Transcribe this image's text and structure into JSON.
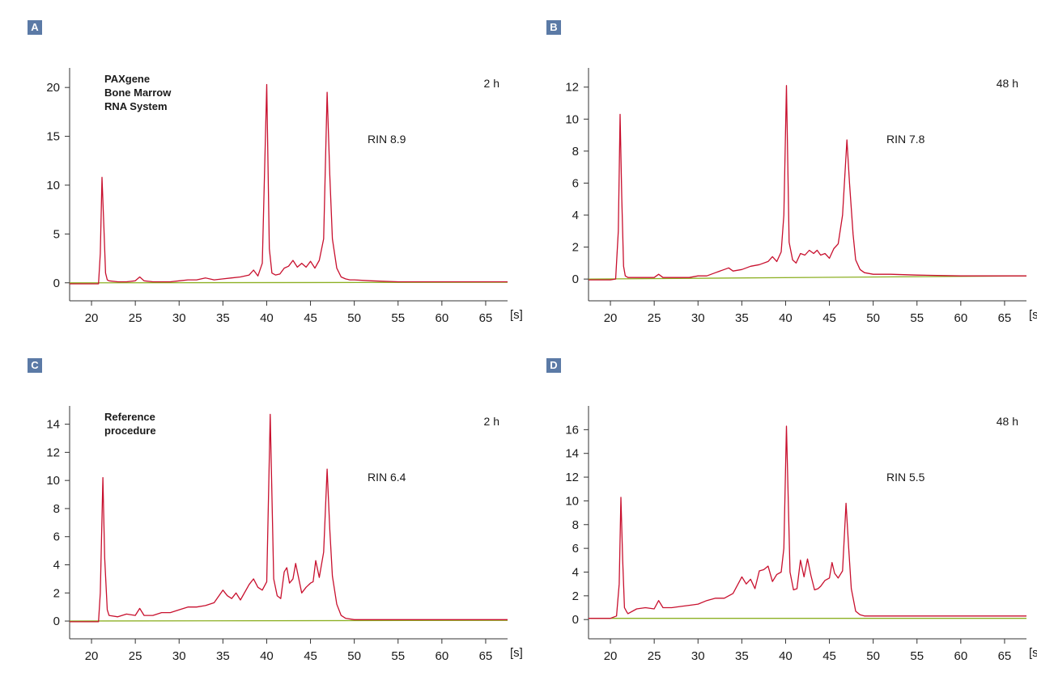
{
  "colors": {
    "trace": "#c8102e",
    "baseline": "#8db024",
    "axis": "#333333",
    "label_bg": "#5b7aa6"
  },
  "chart_data": [
    {
      "type": "line",
      "panel_label": "A",
      "time_label": "2 h",
      "rin_label": "RIN 8.9",
      "system_lines": [
        "PAXgene",
        "Bone Marrow",
        "RNA System"
      ],
      "xlabel": "[s]",
      "xlim": [
        17.5,
        67.5
      ],
      "ylim": [
        -0.6,
        22
      ],
      "xticks": [
        20,
        25,
        30,
        35,
        40,
        45,
        50,
        55,
        60,
        65
      ],
      "yticks": [
        0,
        5,
        10,
        15,
        20
      ],
      "series": [
        {
          "x": [
            17.5,
            18,
            19,
            20,
            20.8,
            21,
            21.2,
            21.4,
            21.6,
            21.8,
            22,
            23,
            24,
            25,
            25.5,
            26,
            27,
            28,
            29,
            30,
            31,
            32,
            33,
            34,
            35,
            36,
            37,
            38,
            38.5,
            39,
            39.5,
            40,
            40.3,
            40.6,
            41,
            41.5,
            42,
            42.5,
            43,
            43.5,
            44,
            44.5,
            45,
            45.5,
            46,
            46.5,
            46.9,
            47.2,
            47.5,
            48,
            48.5,
            49,
            49.5,
            50,
            52,
            55,
            60,
            65,
            67.5
          ],
          "y": [
            -0.1,
            -0.1,
            -0.1,
            -0.1,
            -0.1,
            3,
            10.8,
            6,
            1,
            0.3,
            0.2,
            0.1,
            0.1,
            0.2,
            0.6,
            0.2,
            0.1,
            0.1,
            0.1,
            0.2,
            0.3,
            0.3,
            0.5,
            0.3,
            0.4,
            0.5,
            0.6,
            0.8,
            1.3,
            0.7,
            2,
            20.3,
            3.5,
            1,
            0.8,
            0.9,
            1.5,
            1.7,
            2.3,
            1.6,
            2,
            1.6,
            2.2,
            1.5,
            2.3,
            4.5,
            19.5,
            11,
            4.5,
            1.5,
            0.6,
            0.4,
            0.3,
            0.3,
            0.2,
            0.1,
            0.1,
            0.1,
            0.1
          ]
        },
        {
          "x": [
            17.5,
            67.5
          ],
          "y": [
            0,
            0.05
          ]
        }
      ]
    },
    {
      "type": "line",
      "panel_label": "B",
      "time_label": "48 h",
      "rin_label": "RIN 7.8",
      "xlabel": "[s]",
      "xlim": [
        17.5,
        67.5
      ],
      "ylim": [
        -0.6,
        13.2
      ],
      "xticks": [
        20,
        25,
        30,
        35,
        40,
        45,
        50,
        55,
        60,
        65
      ],
      "yticks": [
        0,
        2,
        4,
        6,
        8,
        10,
        12
      ],
      "series": [
        {
          "x": [
            17.5,
            18,
            19,
            20,
            20.6,
            20.9,
            21.1,
            21.3,
            21.5,
            21.7,
            22,
            23,
            24,
            25,
            25.5,
            26,
            27,
            28,
            29,
            30,
            31,
            32,
            33,
            33.5,
            34,
            35,
            36,
            37,
            38,
            38.5,
            39,
            39.5,
            39.8,
            40.1,
            40.4,
            40.8,
            41.2,
            41.7,
            42.2,
            42.7,
            43.2,
            43.6,
            44,
            44.5,
            45,
            45.5,
            46,
            46.5,
            47,
            47.3,
            47.7,
            48,
            48.5,
            49,
            50,
            52,
            55,
            60,
            65,
            67.5
          ],
          "y": [
            -0.05,
            -0.05,
            -0.05,
            -0.05,
            0,
            3,
            10.3,
            5,
            0.8,
            0.2,
            0.1,
            0.1,
            0.1,
            0.1,
            0.3,
            0.1,
            0.1,
            0.1,
            0.1,
            0.2,
            0.2,
            0.4,
            0.6,
            0.7,
            0.5,
            0.6,
            0.8,
            0.9,
            1.1,
            1.4,
            1.1,
            1.7,
            4,
            12.1,
            2.3,
            1.2,
            1,
            1.6,
            1.5,
            1.8,
            1.6,
            1.8,
            1.5,
            1.6,
            1.3,
            1.9,
            2.2,
            4,
            8.7,
            6,
            2.8,
            1.2,
            0.6,
            0.4,
            0.3,
            0.3,
            0.25,
            0.2,
            0.2,
            0.2
          ]
        },
        {
          "x": [
            17.5,
            67.5
          ],
          "y": [
            0,
            0.2
          ]
        }
      ]
    },
    {
      "type": "line",
      "panel_label": "C",
      "time_label": "2 h",
      "rin_label": "RIN 6.4",
      "system_lines": [
        "Reference",
        "procedure"
      ],
      "xlabel": "[s]",
      "xlim": [
        17.5,
        67.5
      ],
      "ylim": [
        -0.4,
        15.3
      ],
      "xticks": [
        20,
        25,
        30,
        35,
        40,
        45,
        50,
        55,
        60,
        65
      ],
      "yticks": [
        0,
        2,
        4,
        6,
        8,
        10,
        12,
        14
      ],
      "series": [
        {
          "x": [
            17.5,
            18,
            19,
            20,
            20.8,
            21,
            21.3,
            21.5,
            21.8,
            22,
            23,
            24,
            25,
            25.5,
            26,
            27,
            28,
            29,
            30,
            31,
            32,
            33,
            34,
            35,
            35.5,
            36,
            36.5,
            37,
            38,
            38.5,
            39,
            39.5,
            40,
            40.4,
            40.8,
            41.2,
            41.6,
            42,
            42.3,
            42.6,
            43,
            43.3,
            43.6,
            44,
            44.5,
            45,
            45.3,
            45.6,
            46,
            46.5,
            46.9,
            47.2,
            47.5,
            48,
            48.5,
            49,
            50,
            52,
            55,
            60,
            65,
            67.5
          ],
          "y": [
            -0.05,
            -0.05,
            -0.05,
            -0.05,
            -0.05,
            2,
            10.2,
            4.5,
            0.8,
            0.4,
            0.3,
            0.5,
            0.4,
            0.9,
            0.4,
            0.4,
            0.6,
            0.6,
            0.8,
            1,
            1,
            1.1,
            1.3,
            2.2,
            1.8,
            1.6,
            2,
            1.5,
            2.6,
            3,
            2.4,
            2.2,
            2.8,
            14.7,
            3,
            1.8,
            1.6,
            3.5,
            3.8,
            2.7,
            3,
            4.1,
            3.2,
            2,
            2.4,
            2.7,
            2.8,
            4.3,
            3.1,
            4.9,
            10.8,
            6.5,
            3.2,
            1.2,
            0.4,
            0.2,
            0.1,
            0.1,
            0.1,
            0.1,
            0.1,
            0.1
          ]
        },
        {
          "x": [
            17.5,
            67.5
          ],
          "y": [
            0,
            0.05
          ]
        }
      ]
    },
    {
      "type": "line",
      "panel_label": "D",
      "time_label": "48 h",
      "rin_label": "RIN 5.5",
      "xlabel": "[s]",
      "xlim": [
        17.5,
        67.5
      ],
      "ylim": [
        -0.6,
        18
      ],
      "xticks": [
        20,
        25,
        30,
        35,
        40,
        45,
        50,
        55,
        60,
        65
      ],
      "yticks": [
        0,
        2,
        4,
        6,
        8,
        10,
        12,
        14,
        16
      ],
      "series": [
        {
          "x": [
            17.5,
            18,
            19,
            20,
            20.7,
            21,
            21.2,
            21.4,
            21.6,
            21.9,
            22,
            23,
            24,
            25,
            25.5,
            26,
            27,
            28,
            29,
            30,
            31,
            32,
            33,
            34,
            35,
            35.5,
            36,
            36.5,
            37,
            37.5,
            38,
            38.5,
            39,
            39.5,
            39.8,
            40.1,
            40.5,
            40.9,
            41.3,
            41.7,
            42.1,
            42.5,
            42.9,
            43.3,
            43.7,
            44,
            44.5,
            45,
            45.3,
            45.6,
            46,
            46.5,
            46.9,
            47.2,
            47.5,
            48,
            48.5,
            49,
            50,
            52,
            55,
            60,
            65,
            67.5
          ],
          "y": [
            0.1,
            0.1,
            0.1,
            0.1,
            0.3,
            3,
            10.3,
            5,
            1,
            0.6,
            0.5,
            0.9,
            1,
            0.9,
            1.6,
            1,
            1,
            1.1,
            1.2,
            1.3,
            1.6,
            1.8,
            1.8,
            2.2,
            3.6,
            3,
            3.4,
            2.6,
            4.1,
            4.2,
            4.5,
            3.2,
            3.8,
            4,
            6,
            16.3,
            4,
            2.5,
            2.6,
            5,
            3.6,
            5.1,
            3.7,
            2.5,
            2.6,
            2.8,
            3.3,
            3.5,
            4.8,
            3.9,
            3.5,
            4.1,
            9.8,
            6,
            2.6,
            0.7,
            0.4,
            0.3,
            0.3,
            0.3,
            0.3,
            0.3,
            0.3,
            0.3
          ]
        },
        {
          "x": [
            17.5,
            67.5
          ],
          "y": [
            0.1,
            0.1
          ]
        }
      ]
    }
  ]
}
